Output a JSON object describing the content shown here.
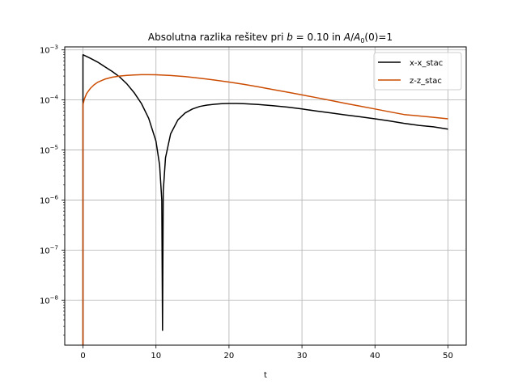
{
  "chart_data": {
    "type": "line",
    "title_prefix": "Absolutna razlika rešitev pri ",
    "title_b_symbol": "b",
    "title_b_value": " = 0.10 in ",
    "title_a_symbol": "A",
    "title_a_slash": "/",
    "title_a0_symbol": "A",
    "title_a0_sub": "0",
    "title_suffix": "(0)=1",
    "xlabel": "t",
    "ylabel": "",
    "xlim": [
      -2.5,
      52.5
    ],
    "ylim_log10": [
      -8.9,
      -2.94
    ],
    "yscale": "log",
    "grid": true,
    "legend_placement": "upper right",
    "x_ticks": [
      0,
      10,
      20,
      30,
      40,
      50
    ],
    "y_tick_exponents": [
      -8,
      -7,
      -6,
      -5,
      -4,
      -3
    ],
    "y_tick_base": "10",
    "series": [
      {
        "name": "x-x_stac",
        "color": "#000000",
        "points": [
          [
            0.0,
            1e-09
          ],
          [
            0.0,
            0.0008
          ],
          [
            1.0,
            0.00068
          ],
          [
            2.0,
            0.00057
          ],
          [
            3.0,
            0.00046
          ],
          [
            4.0,
            0.00037
          ],
          [
            5.0,
            0.00029
          ],
          [
            6.0,
            0.00021
          ],
          [
            7.0,
            0.00014
          ],
          [
            8.0,
            8.5e-05
          ],
          [
            9.0,
            4.3e-05
          ],
          [
            10.0,
            1.5e-05
          ],
          [
            10.5,
            5e-06
          ],
          [
            10.8,
            1e-06
          ],
          [
            10.9,
            2.5e-09
          ],
          [
            11.0,
            1.5e-06
          ],
          [
            11.3,
            7e-06
          ],
          [
            12.0,
            2.1e-05
          ],
          [
            13.0,
            4e-05
          ],
          [
            14.0,
            5.5e-05
          ],
          [
            15.0,
            6.6e-05
          ],
          [
            16.0,
            7.4e-05
          ],
          [
            17.0,
            7.9e-05
          ],
          [
            18.0,
            8.2e-05
          ],
          [
            19.0,
            8.4e-05
          ],
          [
            20.0,
            8.5e-05
          ],
          [
            21.0,
            8.5e-05
          ],
          [
            22.0,
            8.4e-05
          ],
          [
            24.0,
            8.1e-05
          ],
          [
            26.0,
            7.7e-05
          ],
          [
            28.0,
            7.2e-05
          ],
          [
            30.0,
            6.6e-05
          ],
          [
            32.0,
            6e-05
          ],
          [
            34.0,
            5.5e-05
          ],
          [
            36.0,
            5e-05
          ],
          [
            38.0,
            4.6e-05
          ],
          [
            40.0,
            4.2e-05
          ],
          [
            42.0,
            3.8e-05
          ],
          [
            44.0,
            3.4e-05
          ],
          [
            46.0,
            3.1e-05
          ],
          [
            48.0,
            2.9e-05
          ],
          [
            50.0,
            2.6e-05
          ]
        ]
      },
      {
        "name": "z-z_stac",
        "color": "#cc4c02",
        "points": [
          [
            0.0,
            1e-09
          ],
          [
            0.0,
            8e-05
          ],
          [
            0.2,
            0.000105
          ],
          [
            0.5,
            0.000135
          ],
          [
            1.0,
            0.00017
          ],
          [
            1.5,
            0.0002
          ],
          [
            2.0,
            0.000225
          ],
          [
            3.0,
            0.00026
          ],
          [
            4.0,
            0.000285
          ],
          [
            5.0,
            0.0003
          ],
          [
            6.0,
            0.00031
          ],
          [
            7.0,
            0.000315
          ],
          [
            8.0,
            0.00032
          ],
          [
            9.0,
            0.00032
          ],
          [
            10.0,
            0.000318
          ],
          [
            12.0,
            0.000308
          ],
          [
            14.0,
            0.000292
          ],
          [
            16.0,
            0.000272
          ],
          [
            18.0,
            0.00025
          ],
          [
            20.0,
            0.000228
          ],
          [
            22.0,
            0.000205
          ],
          [
            24.0,
            0.000183
          ],
          [
            26.0,
            0.000162
          ],
          [
            28.0,
            0.000143
          ],
          [
            30.0,
            0.000126
          ],
          [
            32.0,
            0.000111
          ],
          [
            34.0,
            9.7e-05
          ],
          [
            36.0,
            8.5e-05
          ],
          [
            38.0,
            7.5e-05
          ],
          [
            40.0,
            6.6e-05
          ],
          [
            42.0,
            5.8e-05
          ],
          [
            44.0,
            5.1e-05
          ],
          [
            46.0,
            4.8e-05
          ],
          [
            48.0,
            4.5e-05
          ],
          [
            50.0,
            4.2e-05
          ]
        ]
      }
    ]
  }
}
